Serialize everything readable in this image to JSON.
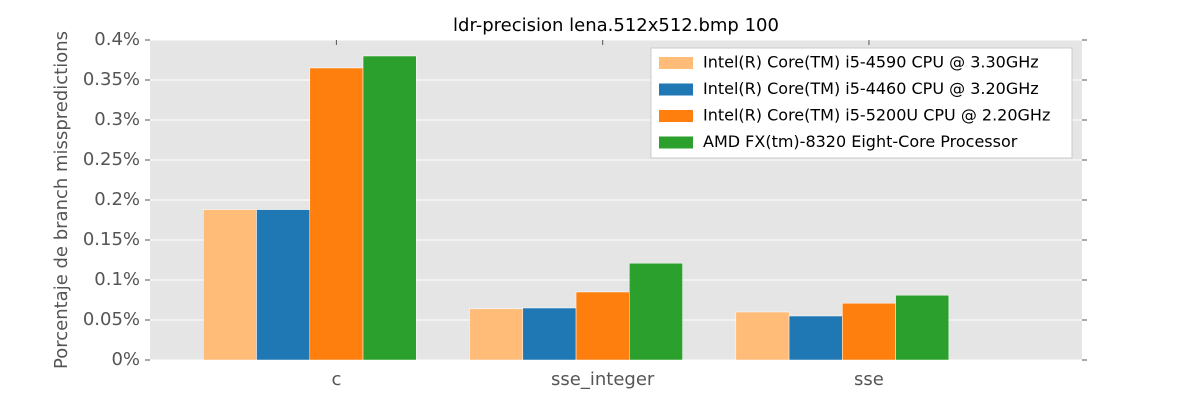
{
  "chart_data": {
    "type": "bar",
    "title": "ldr-precision lena.512x512.bmp 100",
    "ylabel": "Porcentaje de branch misspredictions",
    "categories": [
      "c",
      "sse_integer",
      "sse"
    ],
    "series": [
      {
        "name": "Intel(R) Core(TM) i5-4590 CPU @ 3.30GHz",
        "color": "#ffbb78",
        "values": [
          0.188,
          0.064,
          0.06
        ]
      },
      {
        "name": "Intel(R) Core(TM) i5-4460  CPU @ 3.20GHz",
        "color": "#1f77b4",
        "values": [
          0.188,
          0.065,
          0.055
        ]
      },
      {
        "name": "Intel(R) Core(TM) i5-5200U CPU @ 2.20GHz",
        "color": "#ff7f0e",
        "values": [
          0.365,
          0.085,
          0.071
        ]
      },
      {
        "name": "AMD FX(tm)-8320 Eight-Core Processor",
        "color": "#2ca02c",
        "values": [
          0.38,
          0.121,
          0.081
        ]
      }
    ],
    "ylim": [
      0,
      0.4
    ],
    "yticks": [
      {
        "value": 0,
        "label": "0%"
      },
      {
        "value": 0.05,
        "label": "0.05%"
      },
      {
        "value": 0.1,
        "label": "0.1%"
      },
      {
        "value": 0.15,
        "label": "0.15%"
      },
      {
        "value": 0.2,
        "label": "0.2%"
      },
      {
        "value": 0.25,
        "label": "0.25%"
      },
      {
        "value": 0.3,
        "label": "0.3%"
      },
      {
        "value": 0.35,
        "label": "0.35%"
      },
      {
        "value": 0.4,
        "label": "0.4%"
      }
    ],
    "grid": true,
    "legend": "upper-right"
  }
}
